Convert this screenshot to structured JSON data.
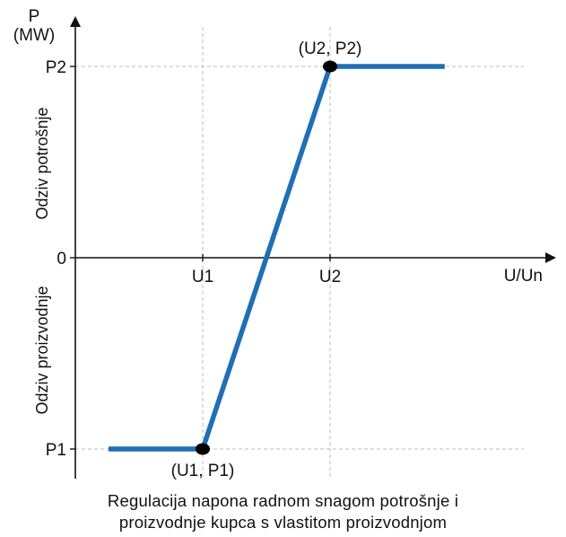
{
  "chart_data": {
    "type": "line",
    "ylabel_lines": [
      "P",
      "(MW)"
    ],
    "xlabel": "U/Un",
    "x_ticks": [
      {
        "label": "U1",
        "x": 1
      },
      {
        "label": "U2",
        "x": 2
      }
    ],
    "y_ticks": [
      {
        "label": "P2",
        "y": 1
      },
      {
        "label": "0",
        "y": 0
      },
      {
        "label": "P1",
        "y": -1
      }
    ],
    "xlim": [
      0,
      3.5
    ],
    "ylim": [
      -1.2,
      1.3
    ],
    "series": [
      {
        "color": "#1f6fb5",
        "x": [
          0.26,
          1,
          2,
          2.9
        ],
        "y": [
          -1,
          -1,
          1,
          1
        ]
      }
    ],
    "points": [
      {
        "x": 1,
        "y": -1,
        "label": "(U1, P1)",
        "label_pos": "below"
      },
      {
        "x": 2,
        "y": 1,
        "label": "(U2, P2)",
        "label_pos": "above"
      }
    ],
    "region_labels": {
      "upper": "Odziv potrošnje",
      "lower": "Odziv proizvodnje"
    },
    "grid": "dashed-at-ticks",
    "caption_lines": [
      "Regulacija napona radnom snagom potrošnje i",
      "proizvodnje kupca s vlastitom proizvodnjom"
    ]
  }
}
